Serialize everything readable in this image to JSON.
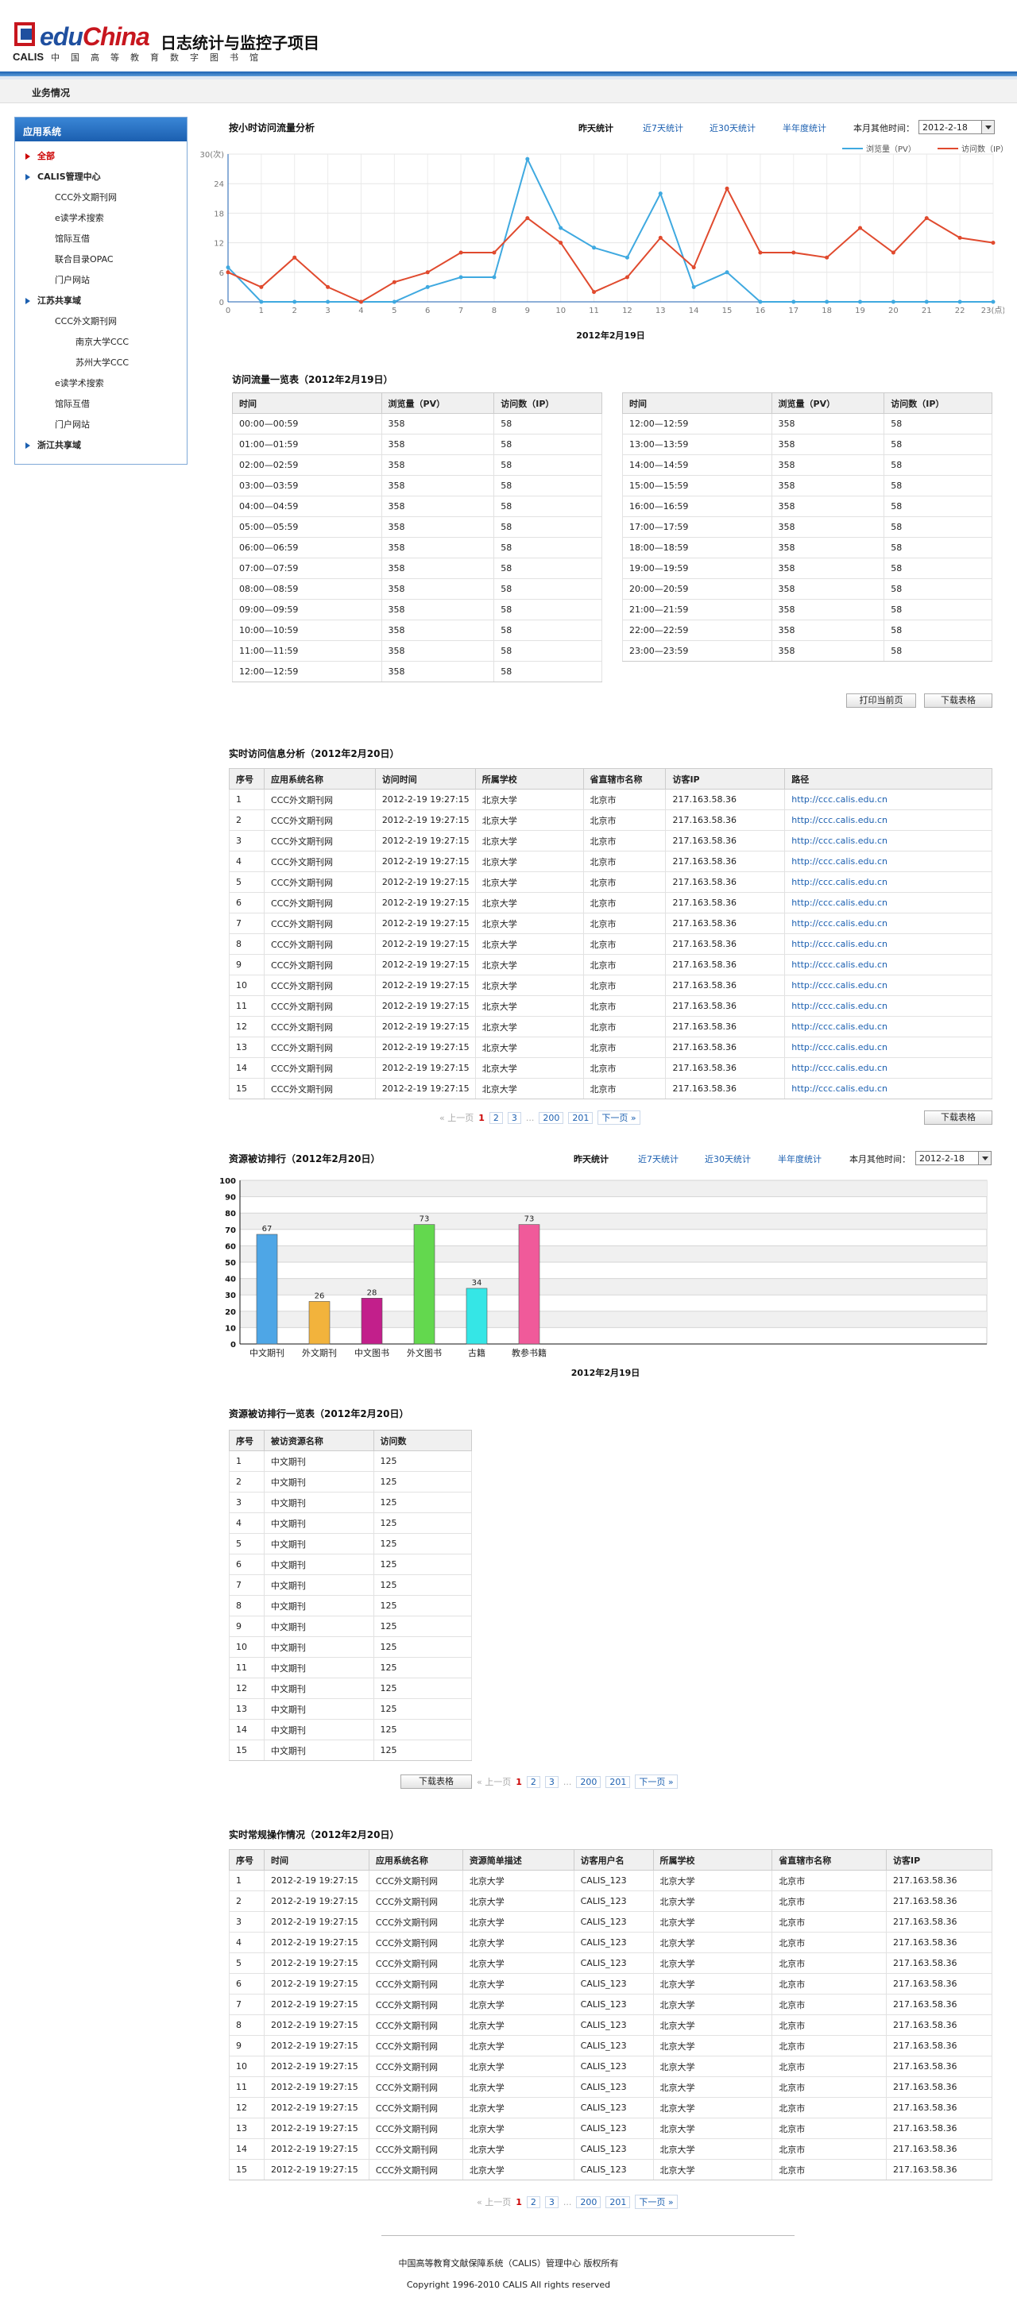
{
  "header": {
    "logo_calis": "CALIS",
    "logo_edu": "edu",
    "logo_china": "China",
    "title": "日志统计与监控子项目",
    "subtitle": "中国高等教育数字图书馆"
  },
  "nav": {
    "tab": "业务情况"
  },
  "sidebar": {
    "head": "应用系统",
    "items": [
      {
        "label": "全部",
        "level": 1,
        "active": true
      },
      {
        "label": "CALIS管理中心",
        "level": 1
      },
      {
        "label": "CCC外文期刊网",
        "level": 2
      },
      {
        "label": "e读学术搜索",
        "level": 2
      },
      {
        "label": "馆际互借",
        "level": 2
      },
      {
        "label": "联合目录OPAC",
        "level": 2
      },
      {
        "label": "门户网站",
        "level": 2
      },
      {
        "label": "江苏共享域",
        "level": 1
      },
      {
        "label": "CCC外文期刊网",
        "level": 2
      },
      {
        "label": "南京大学CCC",
        "level": 3
      },
      {
        "label": "苏州大学CCC",
        "level": 3
      },
      {
        "label": "e读学术搜索",
        "level": 2
      },
      {
        "label": "馆际互借",
        "level": 2
      },
      {
        "label": "门户网站",
        "level": 2
      },
      {
        "label": "浙江共享域",
        "level": 1
      }
    ]
  },
  "filters": {
    "yesterday": "昨天统计",
    "last7": "近7天统计",
    "last30": "近30天统计",
    "halfyear": "半年度统计",
    "other_label": "本月其他时间：",
    "date": "2012-2-18"
  },
  "line_section": {
    "title": "按小时访问流量分析"
  },
  "chart_data": [
    {
      "type": "line",
      "title": "",
      "xlabel": "2012年2月19日",
      "ylabel": "30(次)",
      "x": [
        0,
        1,
        2,
        3,
        4,
        5,
        6,
        7,
        8,
        9,
        10,
        11,
        12,
        13,
        14,
        15,
        16,
        17,
        18,
        19,
        20,
        21,
        22,
        23
      ],
      "x_ticks": [
        "0",
        "1",
        "2",
        "3",
        "4",
        "5",
        "6",
        "7",
        "8",
        "9",
        "10",
        "11",
        "12",
        "13",
        "14",
        "15",
        "16",
        "17",
        "18",
        "19",
        "20",
        "21",
        "22",
        "23(点)"
      ],
      "y_ticks": [
        "0",
        "6",
        "12",
        "18",
        "24",
        "30(次)"
      ],
      "ylim": [
        0,
        30
      ],
      "legend": "top-right",
      "series": [
        {
          "name": "浏览量（PV）",
          "color": "#3fa9e0",
          "values": [
            7,
            0,
            0,
            0,
            0,
            0,
            3,
            5,
            5,
            29,
            15,
            11,
            9,
            22,
            3,
            6,
            0,
            0,
            0,
            0,
            0,
            0,
            0,
            0
          ]
        },
        {
          "name": "访问数（IP）",
          "color": "#e04a2e",
          "values": [
            6,
            3,
            9,
            3,
            0,
            4,
            6,
            10,
            10,
            17,
            12,
            2,
            5,
            13,
            7,
            23,
            10,
            10,
            9,
            15,
            10,
            17,
            13,
            12
          ]
        }
      ]
    },
    {
      "type": "bar",
      "title": "",
      "xlabel": "2012年2月19日",
      "categories": [
        "中文期刊",
        "外文期刊",
        "中文图书",
        "外文图书",
        "古籍",
        "教参书籍"
      ],
      "values": [
        67,
        26,
        28,
        73,
        34,
        73
      ],
      "colors": [
        "#4ea6e6",
        "#f2b33c",
        "#c21f8b",
        "#63d84e",
        "#35e6e6",
        "#f05a9a"
      ],
      "y_ticks": [
        "0",
        "10",
        "20",
        "30",
        "40",
        "50",
        "60",
        "70",
        "80",
        "90",
        "100"
      ],
      "ylim": [
        0,
        100
      ]
    }
  ],
  "flow_table": {
    "title": "访问流量一览表（2012年2月19日）",
    "headers": [
      "时间",
      "浏览量（PV）",
      "访问数（IP）"
    ],
    "left": [
      [
        "00:00—00:59",
        "358",
        "58"
      ],
      [
        "01:00—01:59",
        "358",
        "58"
      ],
      [
        "02:00—02:59",
        "358",
        "58"
      ],
      [
        "03:00—03:59",
        "358",
        "58"
      ],
      [
        "04:00—04:59",
        "358",
        "58"
      ],
      [
        "05:00—05:59",
        "358",
        "58"
      ],
      [
        "06:00—06:59",
        "358",
        "58"
      ],
      [
        "07:00—07:59",
        "358",
        "58"
      ],
      [
        "08:00—08:59",
        "358",
        "58"
      ],
      [
        "09:00—09:59",
        "358",
        "58"
      ],
      [
        "10:00—10:59",
        "358",
        "58"
      ],
      [
        "11:00—11:59",
        "358",
        "58"
      ],
      [
        "12:00—12:59",
        "358",
        "58"
      ]
    ],
    "right": [
      [
        "12:00—12:59",
        "358",
        "58"
      ],
      [
        "13:00—13:59",
        "358",
        "58"
      ],
      [
        "14:00—14:59",
        "358",
        "58"
      ],
      [
        "15:00—15:59",
        "358",
        "58"
      ],
      [
        "16:00—16:59",
        "358",
        "58"
      ],
      [
        "17:00—17:59",
        "358",
        "58"
      ],
      [
        "18:00—18:59",
        "358",
        "58"
      ],
      [
        "19:00—19:59",
        "358",
        "58"
      ],
      [
        "20:00—20:59",
        "358",
        "58"
      ],
      [
        "21:00—21:59",
        "358",
        "58"
      ],
      [
        "22:00—22:59",
        "358",
        "58"
      ],
      [
        "23:00—23:59",
        "358",
        "58"
      ]
    ],
    "print_btn": "打印当前页",
    "download_btn": "下载表格"
  },
  "realtime": {
    "title": "实时访问信息分析（2012年2月20日）",
    "headers": [
      "序号",
      "应用系统名称",
      "访问时间",
      "所属学校",
      "省直辖市名称",
      "访客IP",
      "路径"
    ],
    "rows": [
      [
        "1",
        "CCC外文期刊网",
        "2012-2-19 19:27:15",
        "北京大学",
        "北京市",
        "217.163.58.36",
        "http://ccc.calis.edu.cn"
      ],
      [
        "2",
        "CCC外文期刊网",
        "2012-2-19 19:27:15",
        "北京大学",
        "北京市",
        "217.163.58.36",
        "http://ccc.calis.edu.cn"
      ],
      [
        "3",
        "CCC外文期刊网",
        "2012-2-19 19:27:15",
        "北京大学",
        "北京市",
        "217.163.58.36",
        "http://ccc.calis.edu.cn"
      ],
      [
        "4",
        "CCC外文期刊网",
        "2012-2-19 19:27:15",
        "北京大学",
        "北京市",
        "217.163.58.36",
        "http://ccc.calis.edu.cn"
      ],
      [
        "5",
        "CCC外文期刊网",
        "2012-2-19 19:27:15",
        "北京大学",
        "北京市",
        "217.163.58.36",
        "http://ccc.calis.edu.cn"
      ],
      [
        "6",
        "CCC外文期刊网",
        "2012-2-19 19:27:15",
        "北京大学",
        "北京市",
        "217.163.58.36",
        "http://ccc.calis.edu.cn"
      ],
      [
        "7",
        "CCC外文期刊网",
        "2012-2-19 19:27:15",
        "北京大学",
        "北京市",
        "217.163.58.36",
        "http://ccc.calis.edu.cn"
      ],
      [
        "8",
        "CCC外文期刊网",
        "2012-2-19 19:27:15",
        "北京大学",
        "北京市",
        "217.163.58.36",
        "http://ccc.calis.edu.cn"
      ],
      [
        "9",
        "CCC外文期刊网",
        "2012-2-19 19:27:15",
        "北京大学",
        "北京市",
        "217.163.58.36",
        "http://ccc.calis.edu.cn"
      ],
      [
        "10",
        "CCC外文期刊网",
        "2012-2-19 19:27:15",
        "北京大学",
        "北京市",
        "217.163.58.36",
        "http://ccc.calis.edu.cn"
      ],
      [
        "11",
        "CCC外文期刊网",
        "2012-2-19 19:27:15",
        "北京大学",
        "北京市",
        "217.163.58.36",
        "http://ccc.calis.edu.cn"
      ],
      [
        "12",
        "CCC外文期刊网",
        "2012-2-19 19:27:15",
        "北京大学",
        "北京市",
        "217.163.58.36",
        "http://ccc.calis.edu.cn"
      ],
      [
        "13",
        "CCC外文期刊网",
        "2012-2-19 19:27:15",
        "北京大学",
        "北京市",
        "217.163.58.36",
        "http://ccc.calis.edu.cn"
      ],
      [
        "14",
        "CCC外文期刊网",
        "2012-2-19 19:27:15",
        "北京大学",
        "北京市",
        "217.163.58.36",
        "http://ccc.calis.edu.cn"
      ],
      [
        "15",
        "CCC外文期刊网",
        "2012-2-19 19:27:15",
        "北京大学",
        "北京市",
        "217.163.58.36",
        "http://ccc.calis.edu.cn"
      ]
    ],
    "download_btn": "下载表格"
  },
  "pager": {
    "prev": "« 上一页",
    "p1": "1",
    "p2": "2",
    "p3": "3",
    "dots": "...",
    "p200": "200",
    "p201": "201",
    "next": "下一页 »"
  },
  "bar_section": {
    "title": "资源被访排行（2012年2月20日）"
  },
  "rank_table": {
    "title": "资源被访排行一览表（2012年2月20日）",
    "headers": [
      "序号",
      "被访资源名称",
      "访问数"
    ],
    "rows": [
      [
        "1",
        "中文期刊",
        "125"
      ],
      [
        "2",
        "中文期刊",
        "125"
      ],
      [
        "3",
        "中文期刊",
        "125"
      ],
      [
        "4",
        "中文期刊",
        "125"
      ],
      [
        "5",
        "中文期刊",
        "125"
      ],
      [
        "6",
        "中文期刊",
        "125"
      ],
      [
        "7",
        "中文期刊",
        "125"
      ],
      [
        "8",
        "中文期刊",
        "125"
      ],
      [
        "9",
        "中文期刊",
        "125"
      ],
      [
        "10",
        "中文期刊",
        "125"
      ],
      [
        "11",
        "中文期刊",
        "125"
      ],
      [
        "12",
        "中文期刊",
        "125"
      ],
      [
        "13",
        "中文期刊",
        "125"
      ],
      [
        "14",
        "中文期刊",
        "125"
      ],
      [
        "15",
        "中文期刊",
        "125"
      ]
    ],
    "download_btn": "下载表格"
  },
  "ops": {
    "title": "实时常规操作情况（2012年2月20日）",
    "headers": [
      "序号",
      "时间",
      "应用系统名称",
      "资源简单描述",
      "访客用户名",
      "所属学校",
      "省直辖市名称",
      "访客IP"
    ],
    "rows": [
      [
        "1",
        "2012-2-19 19:27:15",
        "CCC外文期刊网",
        "北京大学",
        "CALIS_123",
        "北京大学",
        "北京市",
        "217.163.58.36"
      ],
      [
        "2",
        "2012-2-19 19:27:15",
        "CCC外文期刊网",
        "北京大学",
        "CALIS_123",
        "北京大学",
        "北京市",
        "217.163.58.36"
      ],
      [
        "3",
        "2012-2-19 19:27:15",
        "CCC外文期刊网",
        "北京大学",
        "CALIS_123",
        "北京大学",
        "北京市",
        "217.163.58.36"
      ],
      [
        "4",
        "2012-2-19 19:27:15",
        "CCC外文期刊网",
        "北京大学",
        "CALIS_123",
        "北京大学",
        "北京市",
        "217.163.58.36"
      ],
      [
        "5",
        "2012-2-19 19:27:15",
        "CCC外文期刊网",
        "北京大学",
        "CALIS_123",
        "北京大学",
        "北京市",
        "217.163.58.36"
      ],
      [
        "6",
        "2012-2-19 19:27:15",
        "CCC外文期刊网",
        "北京大学",
        "CALIS_123",
        "北京大学",
        "北京市",
        "217.163.58.36"
      ],
      [
        "7",
        "2012-2-19 19:27:15",
        "CCC外文期刊网",
        "北京大学",
        "CALIS_123",
        "北京大学",
        "北京市",
        "217.163.58.36"
      ],
      [
        "8",
        "2012-2-19 19:27:15",
        "CCC外文期刊网",
        "北京大学",
        "CALIS_123",
        "北京大学",
        "北京市",
        "217.163.58.36"
      ],
      [
        "9",
        "2012-2-19 19:27:15",
        "CCC外文期刊网",
        "北京大学",
        "CALIS_123",
        "北京大学",
        "北京市",
        "217.163.58.36"
      ],
      [
        "10",
        "2012-2-19 19:27:15",
        "CCC外文期刊网",
        "北京大学",
        "CALIS_123",
        "北京大学",
        "北京市",
        "217.163.58.36"
      ],
      [
        "11",
        "2012-2-19 19:27:15",
        "CCC外文期刊网",
        "北京大学",
        "CALIS_123",
        "北京大学",
        "北京市",
        "217.163.58.36"
      ],
      [
        "12",
        "2012-2-19 19:27:15",
        "CCC外文期刊网",
        "北京大学",
        "CALIS_123",
        "北京大学",
        "北京市",
        "217.163.58.36"
      ],
      [
        "13",
        "2012-2-19 19:27:15",
        "CCC外文期刊网",
        "北京大学",
        "CALIS_123",
        "北京大学",
        "北京市",
        "217.163.58.36"
      ],
      [
        "14",
        "2012-2-19 19:27:15",
        "CCC外文期刊网",
        "北京大学",
        "CALIS_123",
        "北京大学",
        "北京市",
        "217.163.58.36"
      ],
      [
        "15",
        "2012-2-19 19:27:15",
        "CCC外文期刊网",
        "北京大学",
        "CALIS_123",
        "北京大学",
        "北京市",
        "217.163.58.36"
      ]
    ]
  },
  "footer": {
    "line1": "中国高等教育文献保障系统（CALIS）管理中心 版权所有",
    "line2": "Copyright 1996-2010 CALIS All rights reserved"
  }
}
